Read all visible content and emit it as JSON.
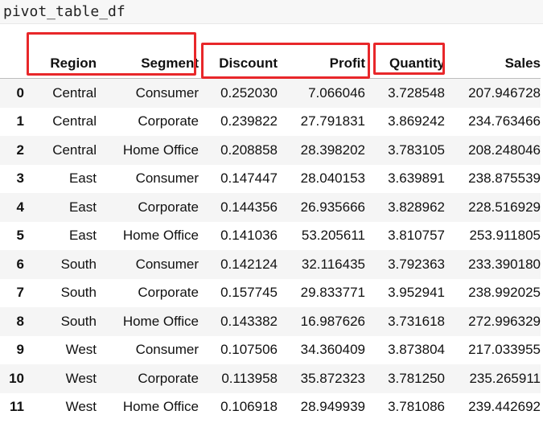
{
  "code": "pivot_table_df",
  "columns": [
    "Region",
    "Segment",
    "Discount",
    "Profit",
    "Quantity",
    "Sales"
  ],
  "rows": [
    {
      "index": "0",
      "cells": [
        "Central",
        "Consumer",
        "0.252030",
        "7.066046",
        "3.728548",
        "207.946728"
      ]
    },
    {
      "index": "1",
      "cells": [
        "Central",
        "Corporate",
        "0.239822",
        "27.791831",
        "3.869242",
        "234.763466"
      ]
    },
    {
      "index": "2",
      "cells": [
        "Central",
        "Home Office",
        "0.208858",
        "28.398202",
        "3.783105",
        "208.248046"
      ]
    },
    {
      "index": "3",
      "cells": [
        "East",
        "Consumer",
        "0.147447",
        "28.040153",
        "3.639891",
        "238.875539"
      ]
    },
    {
      "index": "4",
      "cells": [
        "East",
        "Corporate",
        "0.144356",
        "26.935666",
        "3.828962",
        "228.516929"
      ]
    },
    {
      "index": "5",
      "cells": [
        "East",
        "Home Office",
        "0.141036",
        "53.205611",
        "3.810757",
        "253.911805"
      ]
    },
    {
      "index": "6",
      "cells": [
        "South",
        "Consumer",
        "0.142124",
        "32.116435",
        "3.792363",
        "233.390180"
      ]
    },
    {
      "index": "7",
      "cells": [
        "South",
        "Corporate",
        "0.157745",
        "29.833771",
        "3.952941",
        "238.992025"
      ]
    },
    {
      "index": "8",
      "cells": [
        "South",
        "Home Office",
        "0.143382",
        "16.987626",
        "3.731618",
        "272.996329"
      ]
    },
    {
      "index": "9",
      "cells": [
        "West",
        "Consumer",
        "0.107506",
        "34.360409",
        "3.873804",
        "217.033955"
      ]
    },
    {
      "index": "10",
      "cells": [
        "West",
        "Corporate",
        "0.113958",
        "35.872323",
        "3.781250",
        "235.265911"
      ]
    },
    {
      "index": "11",
      "cells": [
        "West",
        "Home Office",
        "0.106918",
        "28.949939",
        "3.781086",
        "239.442692"
      ]
    }
  ],
  "highlight_color": "#e8272a"
}
